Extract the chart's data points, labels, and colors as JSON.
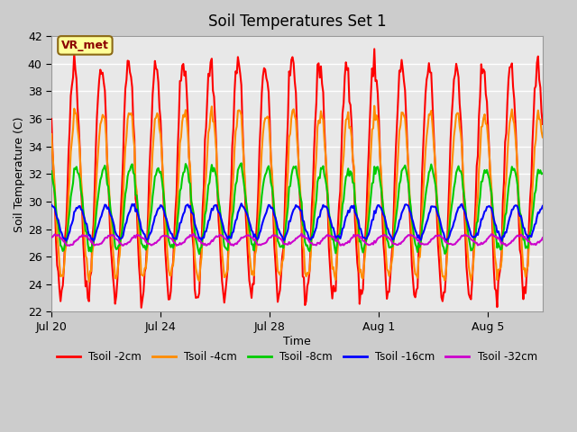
{
  "title": "Soil Temperatures Set 1",
  "xlabel": "Time",
  "ylabel": "Soil Temperature (C)",
  "ylim": [
    22,
    42
  ],
  "yticks": [
    22,
    24,
    26,
    28,
    30,
    32,
    34,
    36,
    38,
    40,
    42
  ],
  "annotation": "VR_met",
  "series": [
    {
      "label": "Tsoil -2cm",
      "color": "#ff0000",
      "lw": 1.5
    },
    {
      "label": "Tsoil -4cm",
      "color": "#ff8c00",
      "lw": 1.5
    },
    {
      "label": "Tsoil -8cm",
      "color": "#00cc00",
      "lw": 1.5
    },
    {
      "label": "Tsoil -16cm",
      "color": "#0000ff",
      "lw": 1.5
    },
    {
      "label": "Tsoil -32cm",
      "color": "#cc00cc",
      "lw": 1.5
    }
  ],
  "xtick_labels": [
    "Jul 20",
    "Jul 24",
    "Jul 28",
    "Aug 1",
    "Aug 5"
  ],
  "xtick_positions": [
    0,
    4,
    8,
    12,
    16
  ],
  "total_days": 18,
  "n_points": 433
}
